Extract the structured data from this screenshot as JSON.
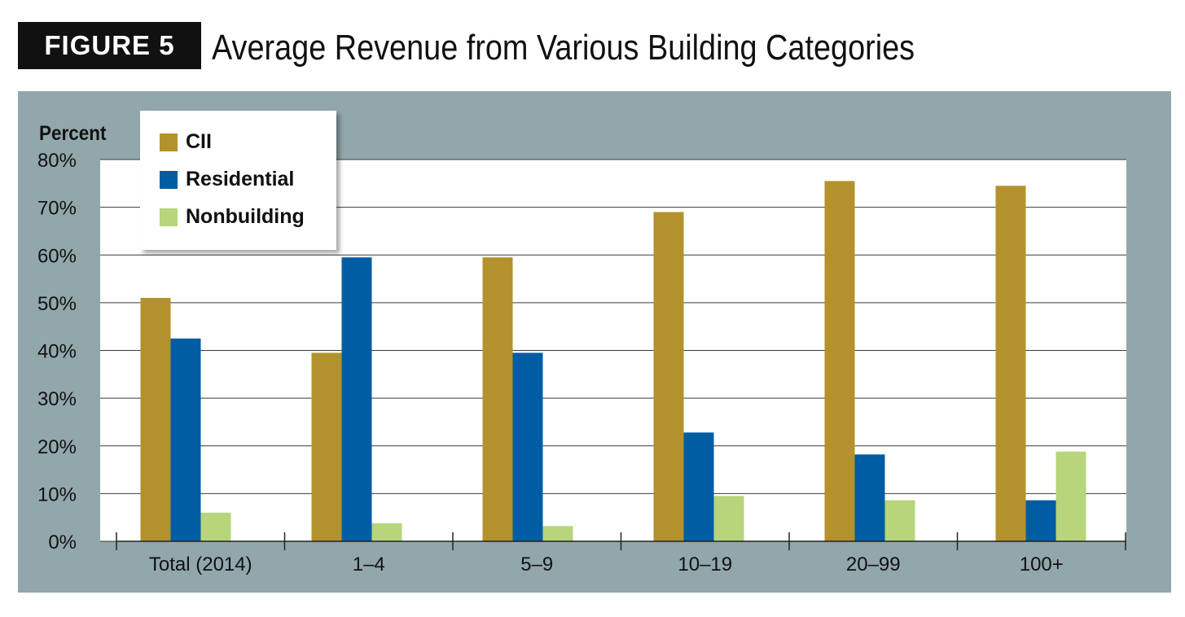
{
  "figure": {
    "tag": "FIGURE 5",
    "title": "Average Revenue from Various Building Categories"
  },
  "colors": {
    "panel_bg": "#92a7ab",
    "plot_bg": "#ffffff",
    "cii": "#b3922d",
    "residential": "#005da4",
    "nonbuilding": "#b7d57a"
  },
  "chart_data": {
    "type": "bar",
    "ylabel": "Percent",
    "xlabel": "",
    "ylim": [
      0,
      80
    ],
    "y_ticks": [
      "0%",
      "10%",
      "20%",
      "30%",
      "40%",
      "50%",
      "60%",
      "70%",
      "80%"
    ],
    "grid": true,
    "legend_position": "top-left",
    "categories": [
      "Total (2014)",
      "1–4",
      "5–9",
      "10–19",
      "20–99",
      "100+"
    ],
    "series": [
      {
        "name": "CII",
        "color": "#b3922d",
        "values": [
          51,
          39.5,
          59.5,
          69,
          75.5,
          74.5
        ]
      },
      {
        "name": "Residential",
        "color": "#005da4",
        "values": [
          42.5,
          59.5,
          39.5,
          22.8,
          18.2,
          8.6
        ]
      },
      {
        "name": "Nonbuilding",
        "color": "#b7d57a",
        "values": [
          6,
          3.8,
          3.2,
          9.5,
          8.6,
          18.8
        ]
      }
    ]
  }
}
